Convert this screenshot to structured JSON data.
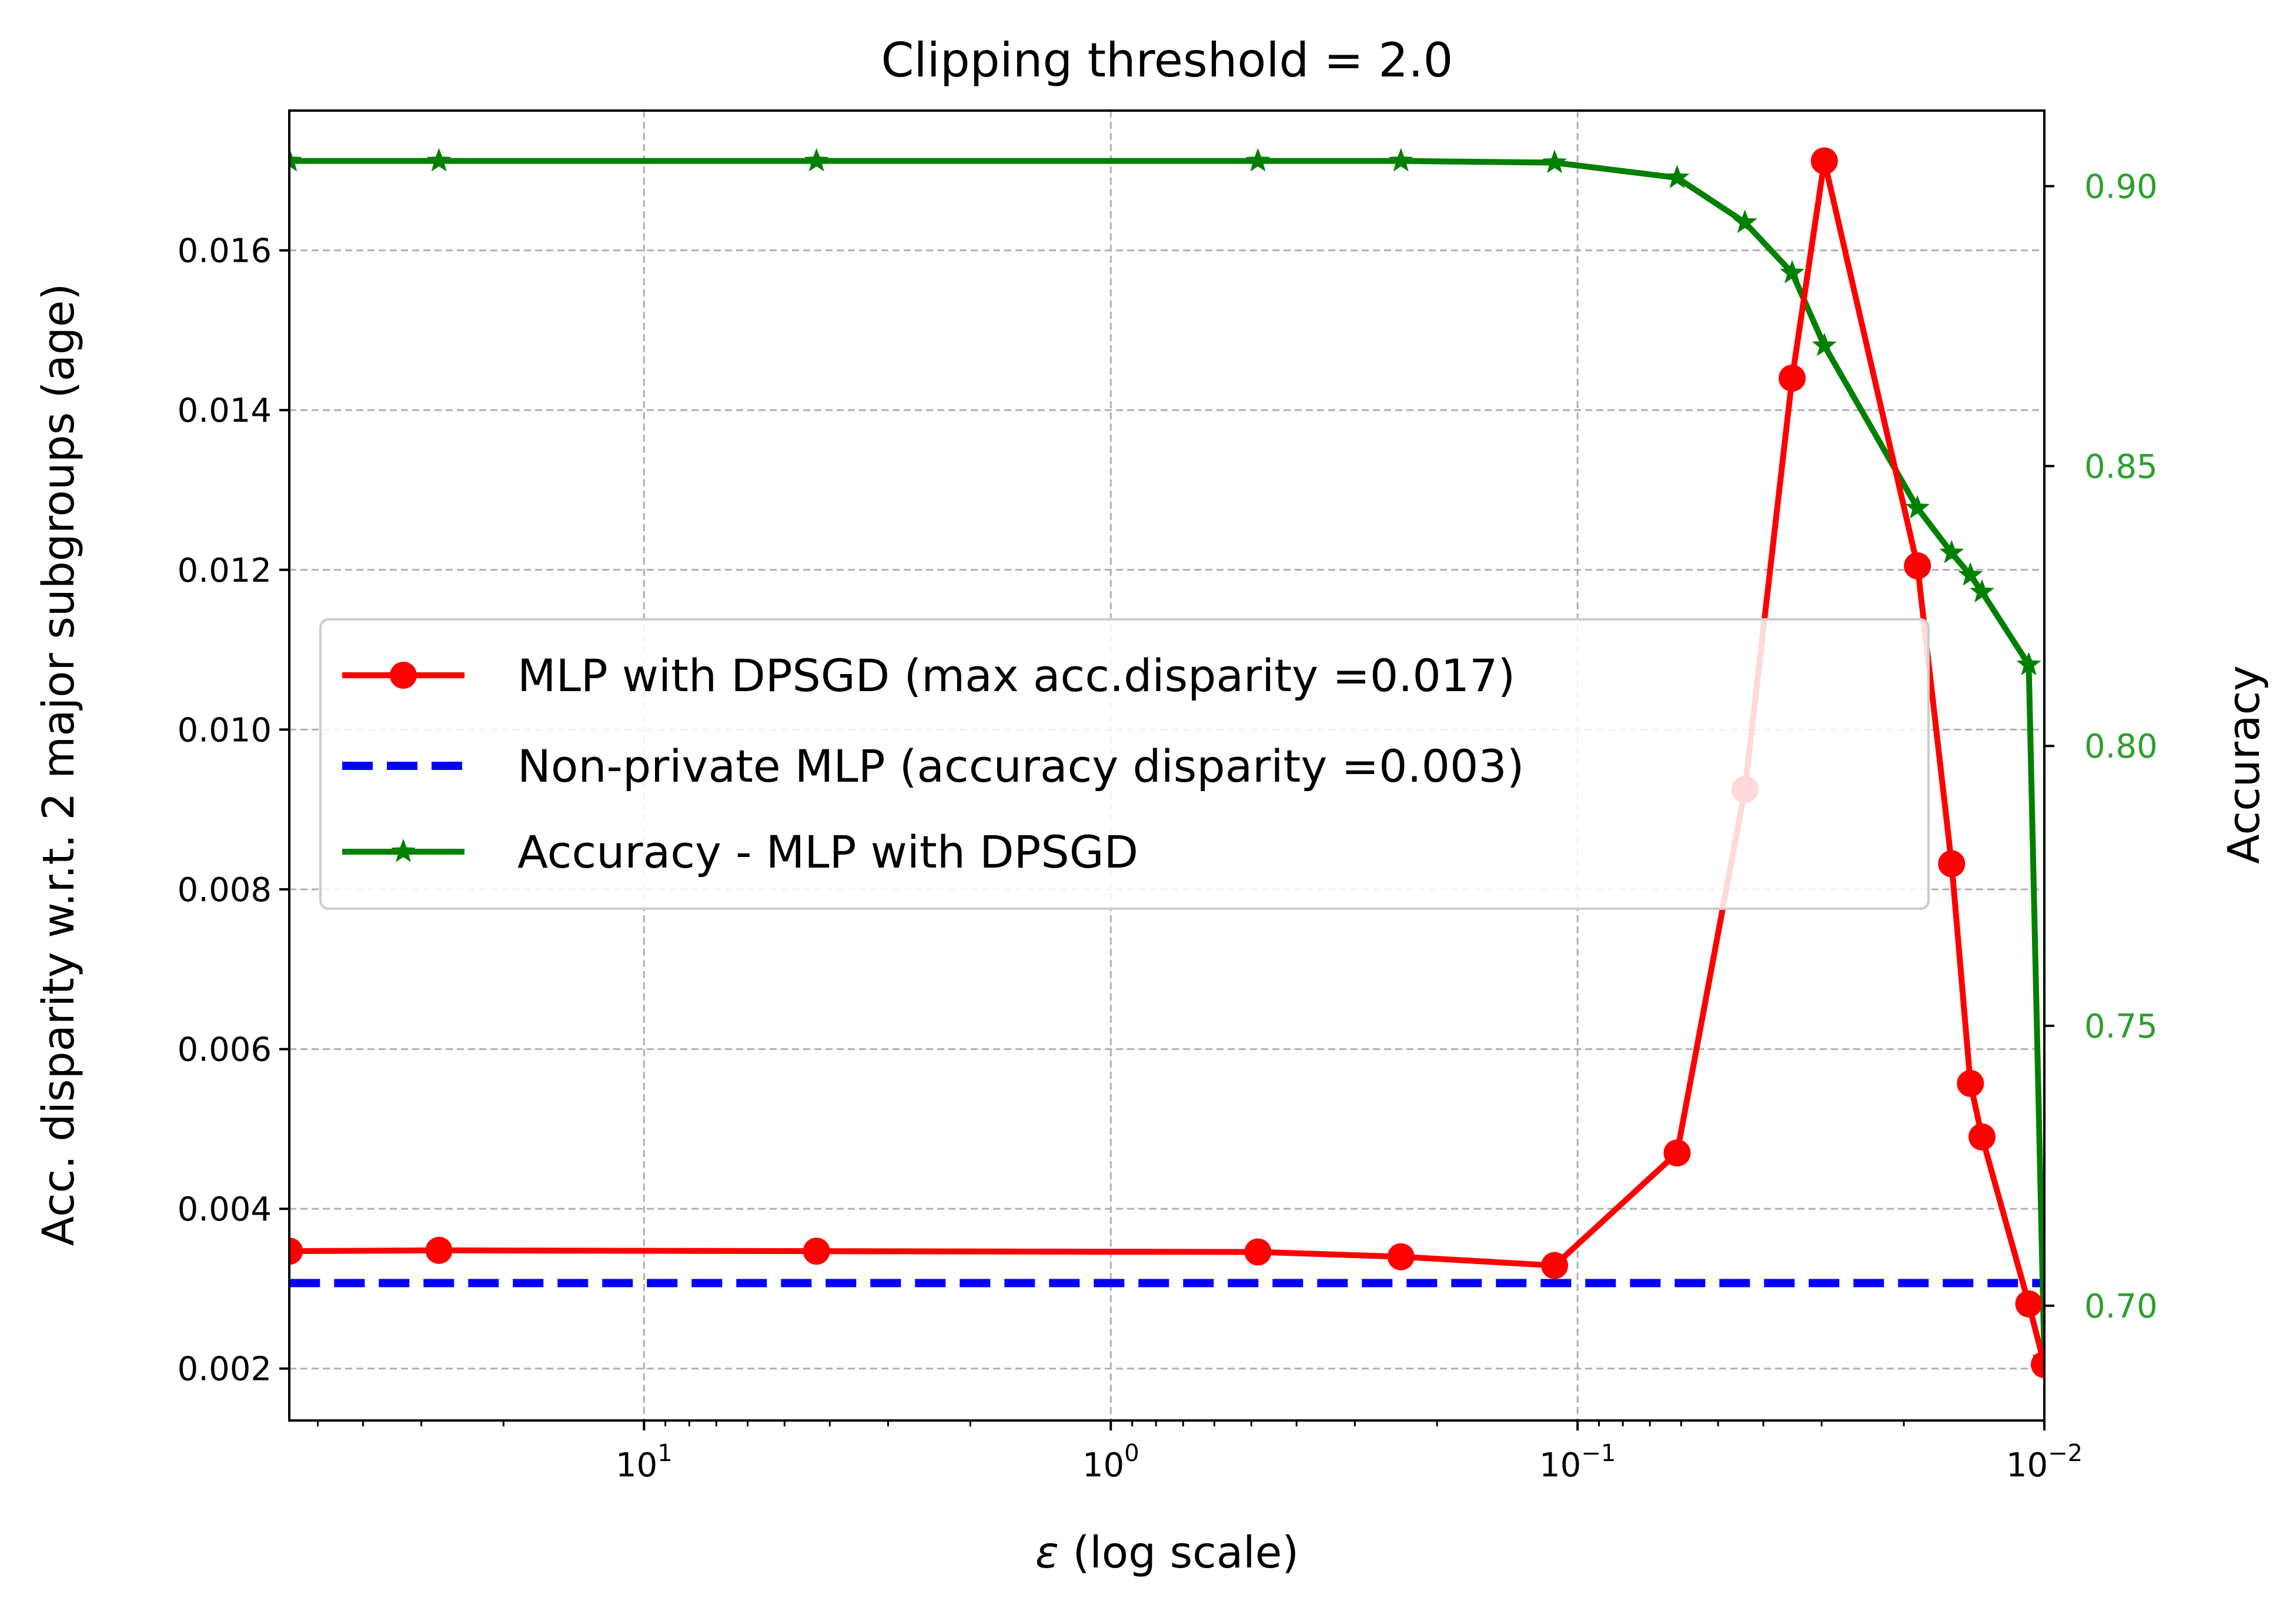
{
  "chart_data": {
    "type": "line",
    "title": "Clipping threshold = 2.0",
    "xlabel_symbol": "ε",
    "xlabel": " (log scale)",
    "ylabel": "Acc. disparity w.r.t. 2 major subgroups (age)",
    "y2label": "Accuracy",
    "x_scale": "log",
    "x_inverted": true,
    "xlim_log10": [
      1.76,
      -2
    ],
    "ylim": [
      0.00135,
      0.01775
    ],
    "y2lim": [
      0.6795,
      0.9135
    ],
    "x_ticks": [
      {
        "log": 1,
        "base": "10",
        "exp": "1"
      },
      {
        "log": 0,
        "base": "10",
        "exp": "0"
      },
      {
        "log": -1,
        "base": "10",
        "exp": "−1"
      },
      {
        "log": -2,
        "base": "10",
        "exp": "−2"
      }
    ],
    "y_ticks": [
      "0.002",
      "0.004",
      "0.006",
      "0.008",
      "0.010",
      "0.012",
      "0.014",
      "0.016"
    ],
    "y_tick_values": [
      0.002,
      0.004,
      0.006,
      0.008,
      0.01,
      0.012,
      0.014,
      0.016
    ],
    "y2_ticks": [
      "0.70",
      "0.75",
      "0.80",
      "0.85",
      "0.90"
    ],
    "y2_tick_values": [
      0.7,
      0.75,
      0.8,
      0.85,
      0.9
    ],
    "grid": true,
    "legend_position": "center-left",
    "colors": {
      "disparity": "#ff0000",
      "baseline": "#0000ff",
      "accuracy": "#008000",
      "right_axis": "#2ca02c",
      "grid": "#b0b0b0"
    },
    "series": [
      {
        "name": "MLP with DPSGD (max acc.disparity =0.017)",
        "axis": "left",
        "marker": "circle",
        "x": [
          57.5,
          27.5,
          4.27,
          0.484,
          0.239,
          0.112,
          0.0612,
          0.0438,
          0.0347,
          0.0296,
          0.0187,
          0.0158,
          0.0144,
          0.0136,
          0.0108,
          0.01
        ],
        "y": [
          0.00347,
          0.00348,
          0.00347,
          0.00346,
          0.0034,
          0.00329,
          0.0047,
          0.00925,
          0.0144,
          0.01712,
          0.01205,
          0.00832,
          0.00557,
          0.0049,
          0.00281,
          0.00205
        ]
      },
      {
        "name": "Non-private MLP (accuracy disparity =0.003)",
        "axis": "left",
        "marker": "none",
        "dashed": true,
        "x": [
          57.5,
          0.01
        ],
        "y": [
          0.00307,
          0.00307
        ]
      },
      {
        "name": "Accuracy - MLP with DPSGD",
        "axis": "right",
        "marker": "star",
        "x": [
          57.5,
          27.5,
          4.27,
          0.484,
          0.239,
          0.112,
          0.0612,
          0.0438,
          0.0347,
          0.0296,
          0.0187,
          0.0158,
          0.0144,
          0.0136,
          0.0108,
          0.01
        ],
        "y": [
          0.9045,
          0.9045,
          0.9045,
          0.9045,
          0.9045,
          0.9042,
          0.9015,
          0.8935,
          0.8845,
          0.8715,
          0.8425,
          0.8345,
          0.8305,
          0.8275,
          0.8145,
          0.6905
        ]
      }
    ]
  }
}
